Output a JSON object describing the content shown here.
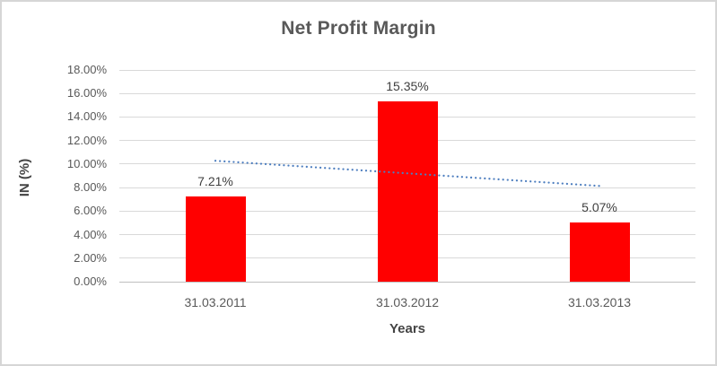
{
  "chart_data": {
    "type": "bar",
    "title": "Net Profit Margin",
    "xlabel": "Years",
    "ylabel": "IN (%)",
    "categories": [
      "31.03.2011",
      "31.03.2012",
      "31.03.2013"
    ],
    "values": [
      7.21,
      15.35,
      5.07
    ],
    "data_labels": [
      "7.21%",
      "15.35%",
      "5.07%"
    ],
    "ylim": [
      0,
      18
    ],
    "ytick_step": 2,
    "ytick_labels": [
      "0.00%",
      "2.00%",
      "4.00%",
      "6.00%",
      "8.00%",
      "10.00%",
      "12.00%",
      "14.00%",
      "16.00%",
      "18.00%"
    ],
    "grid": true,
    "legend": "none",
    "bar_color": "#ff0000",
    "trendline": {
      "type": "linear",
      "style": "dotted",
      "color": "#4d7ebf",
      "endpoint_values": [
        10.28,
        8.14
      ]
    },
    "colors": {
      "title_text": "#595959",
      "tick_text": "#595959",
      "data_label_text": "#3f3f3f",
      "gridline": "#d9d9d9",
      "axis_line": "#bfbfbf",
      "chart_border": "#d6d6d6"
    }
  }
}
